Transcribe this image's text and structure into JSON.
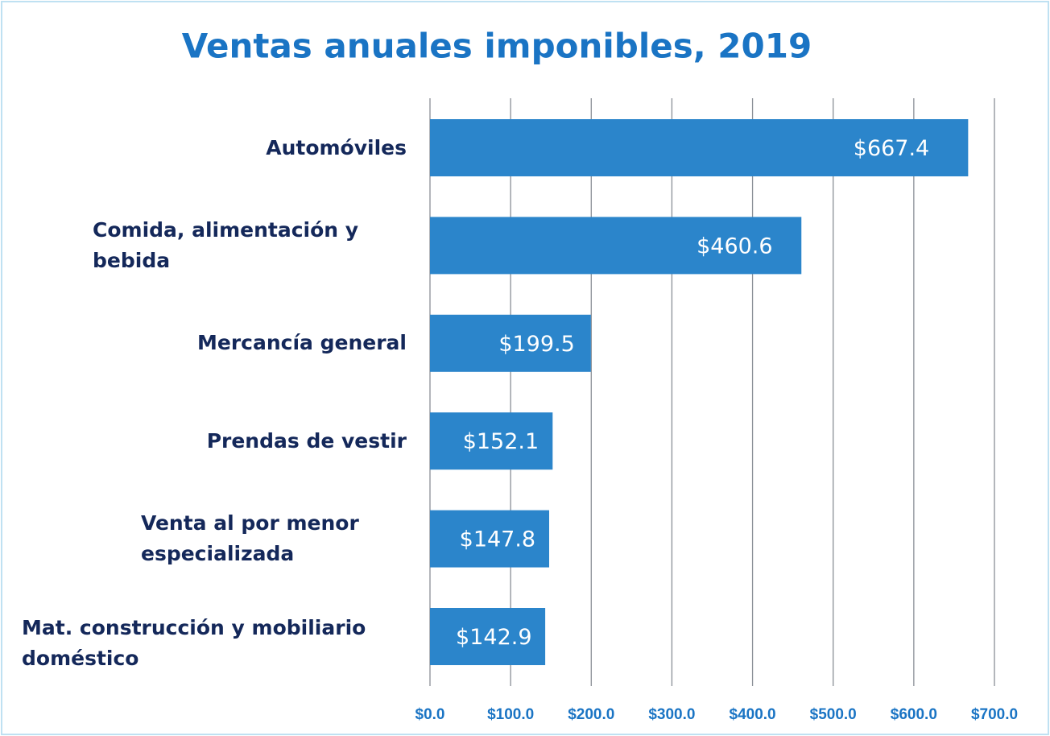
{
  "chart_data": {
    "type": "bar",
    "orientation": "horizontal",
    "title": "Ventas anuales imponibles, 2019",
    "categories": [
      "Automóviles",
      "Comida, alimentación y bebida",
      "Mercancía general",
      "Prendas de vestir",
      "Venta al por menor especializada",
      "Mat. construcción y mobiliario doméstico"
    ],
    "values": [
      667.4,
      460.6,
      199.5,
      152.1,
      147.8,
      142.9
    ],
    "value_labels": [
      "$667.4",
      "$460.6",
      "$199.5",
      "$152.1",
      "$147.8",
      "$142.9"
    ],
    "color": "#2b85cb",
    "xlim": [
      0,
      700
    ],
    "xticks": [
      {
        "value": 0,
        "label": "$0.0"
      },
      {
        "value": 100,
        "label": "$100.0"
      },
      {
        "value": 200,
        "label": "$200.0"
      },
      {
        "value": 300,
        "label": "$300.0"
      },
      {
        "value": 400,
        "label": "$400.0"
      },
      {
        "value": 500,
        "label": "$500.0"
      },
      {
        "value": 600,
        "label": "$600.0"
      },
      {
        "value": 700,
        "label": "$700.0"
      }
    ],
    "grid": true
  }
}
